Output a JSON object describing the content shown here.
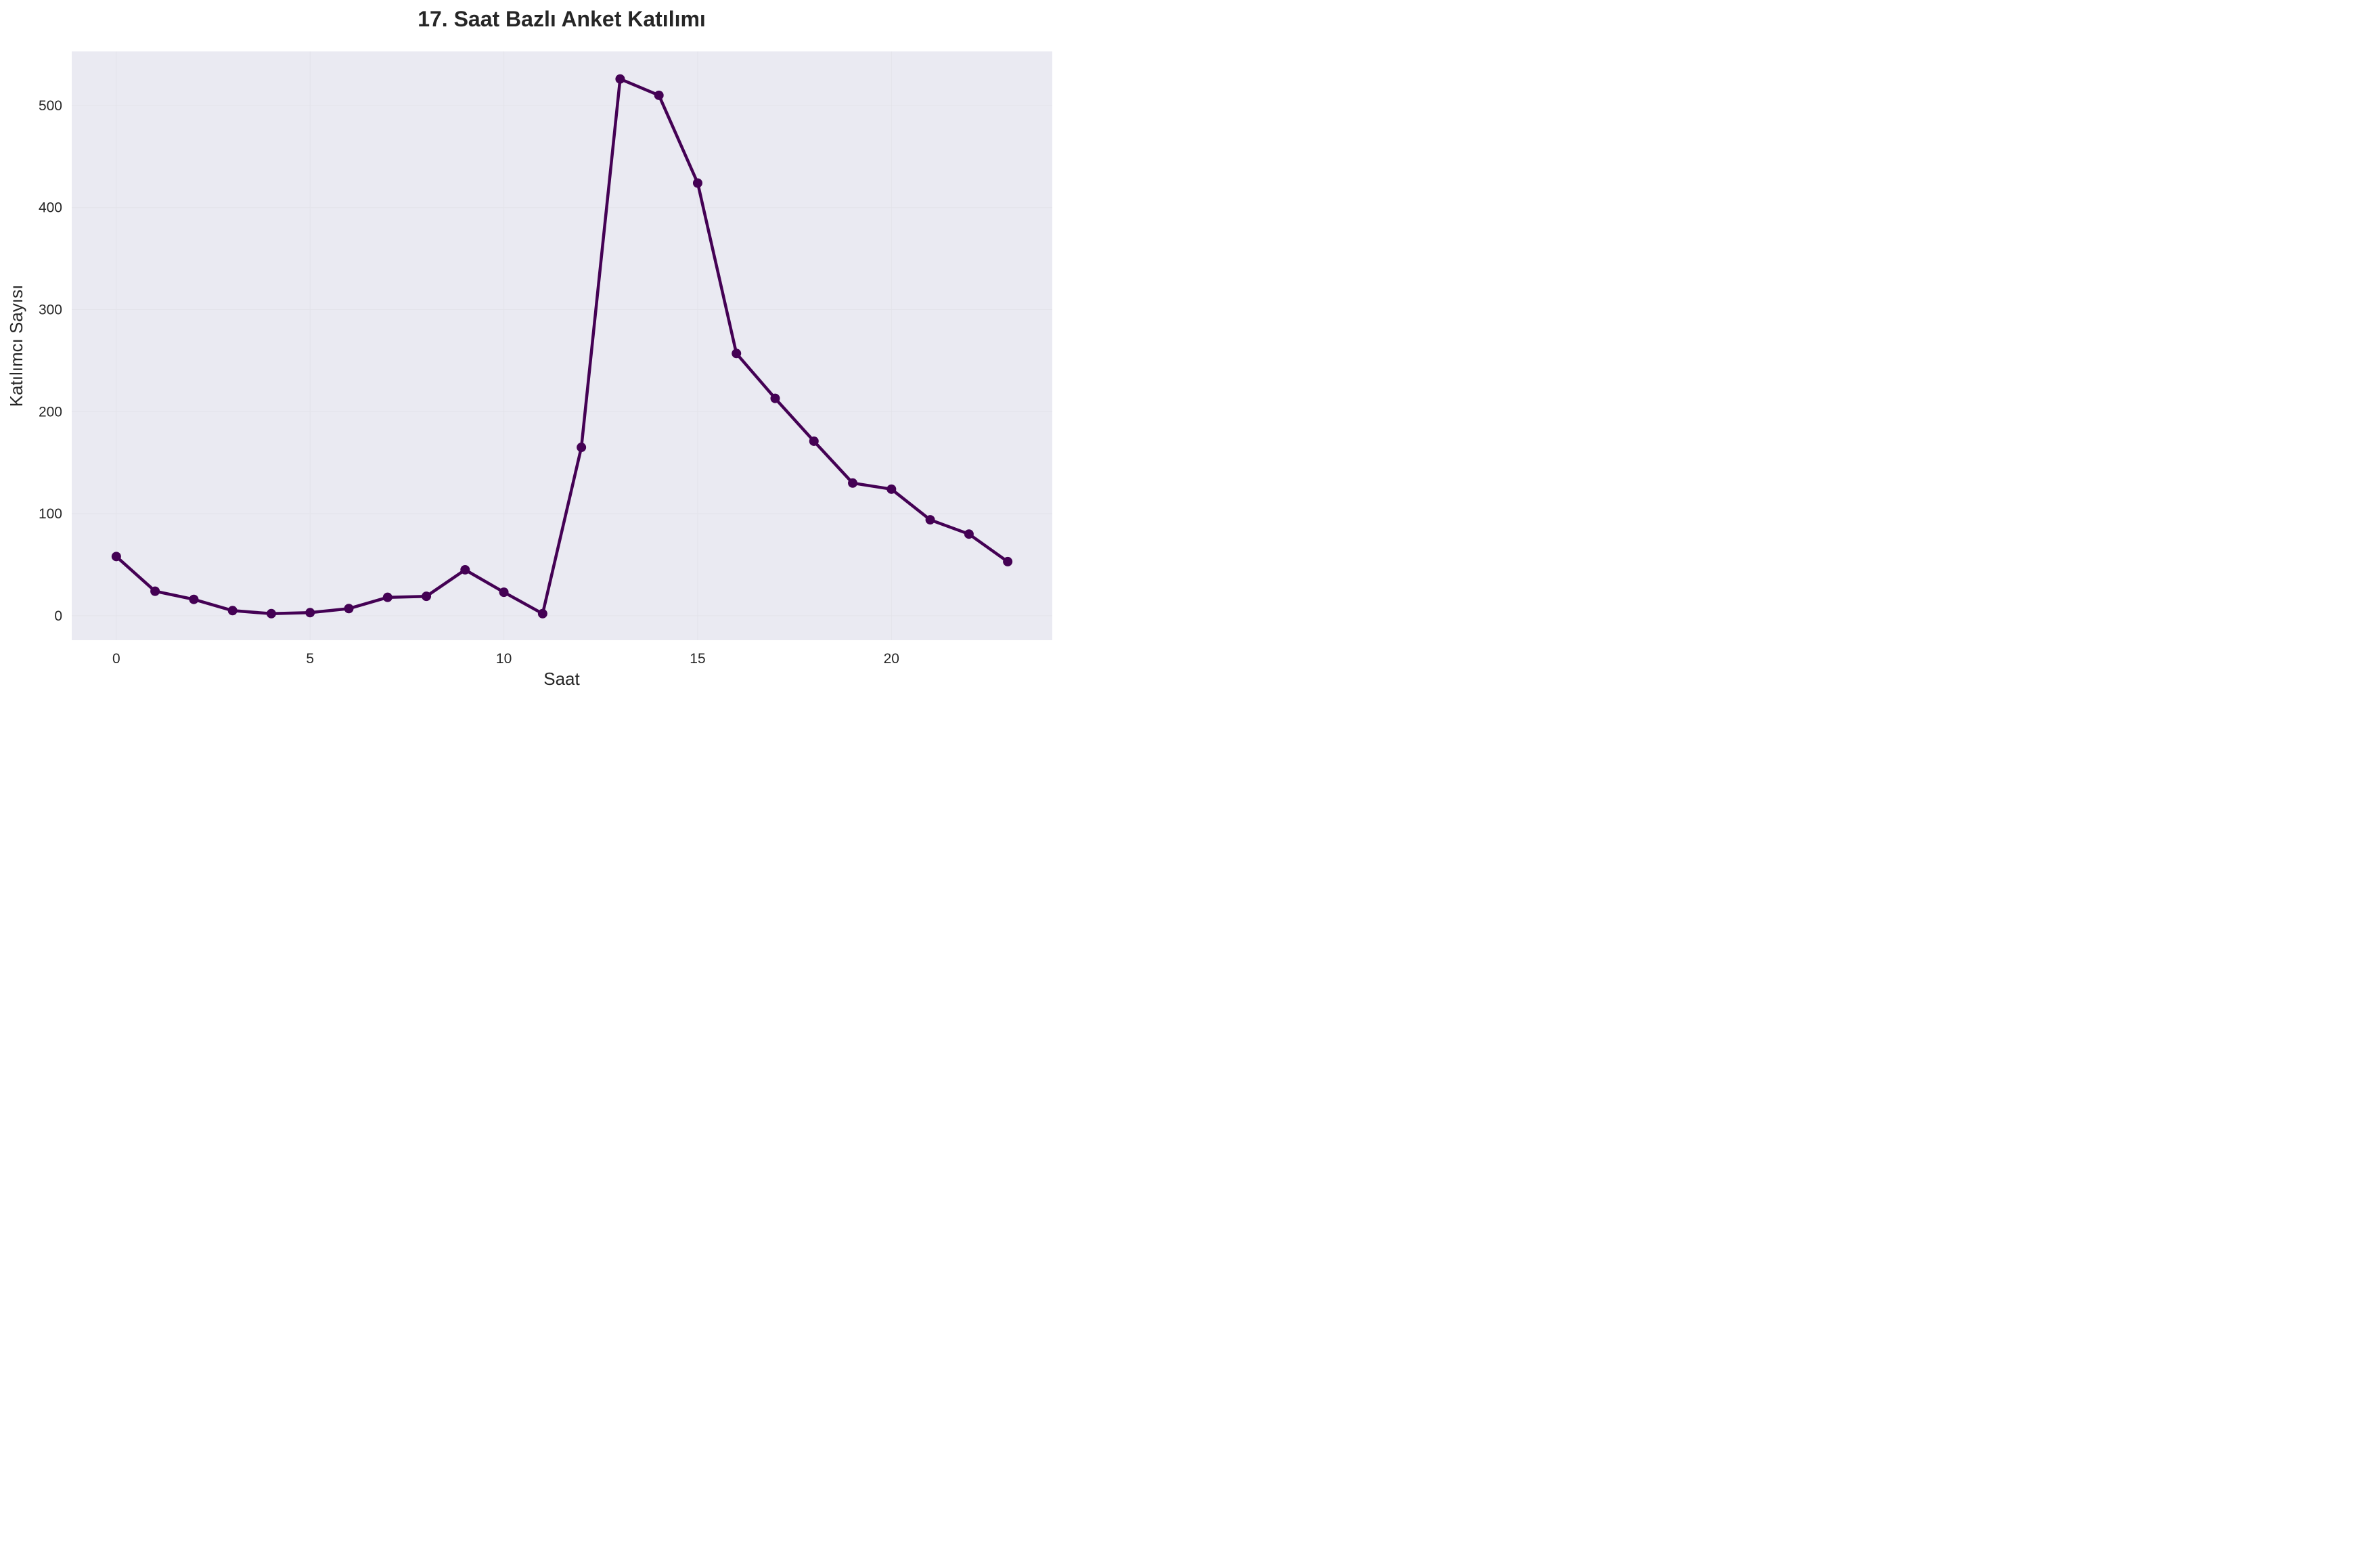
{
  "chart_data": {
    "type": "line",
    "title": "17. Saat Bazlı Anket Katılımı",
    "xlabel": "Saat",
    "ylabel": "Katılımcı Sayısı",
    "x": [
      0,
      1,
      2,
      3,
      4,
      5,
      6,
      7,
      8,
      9,
      10,
      11,
      12,
      13,
      14,
      15,
      16,
      17,
      18,
      19,
      20,
      21,
      22,
      23
    ],
    "series": [
      {
        "values": [
          58,
          24,
          16,
          5,
          2,
          3,
          7,
          18,
          19,
          45,
          23,
          2,
          165,
          526,
          510,
          424,
          257,
          213,
          171,
          130,
          124,
          94,
          80,
          53
        ]
      }
    ],
    "xlim": [
      -1.15,
      24.15
    ],
    "ylim": [
      -24,
      553
    ],
    "xticks": [
      0,
      5,
      10,
      15,
      20
    ],
    "yticks": [
      0,
      100,
      200,
      300,
      400,
      500
    ],
    "grid": true,
    "colors": {
      "line": "#440154",
      "plot_background": "#eaeaf2",
      "grid": "#e3e3ea",
      "text": "#262626"
    }
  }
}
